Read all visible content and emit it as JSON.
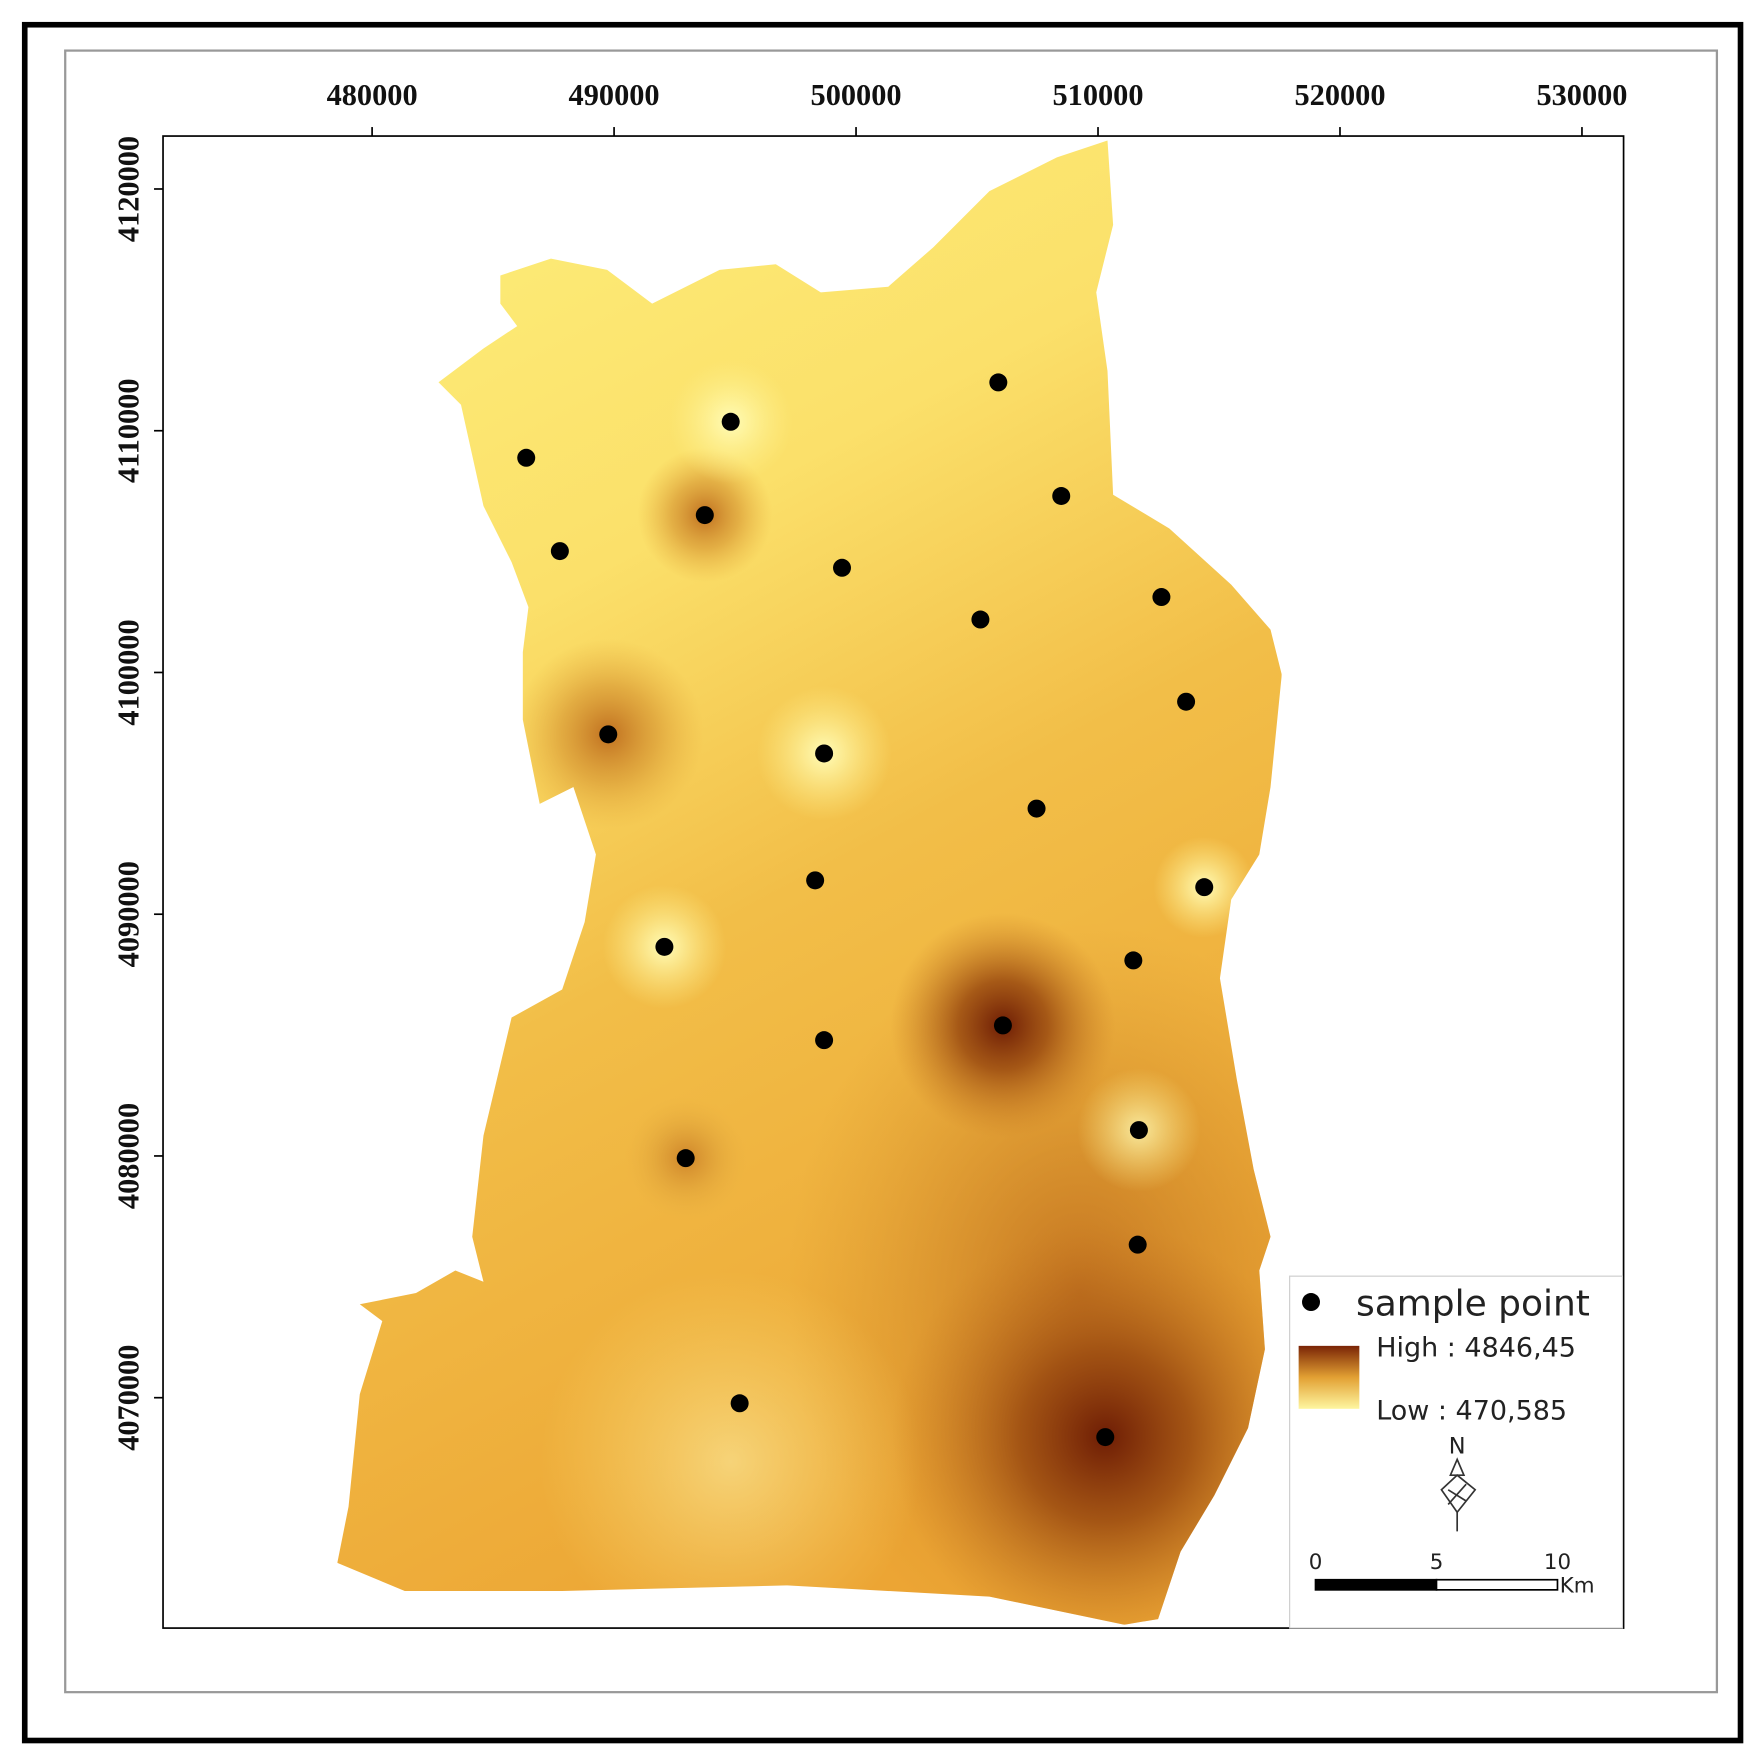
{
  "map": {
    "type": "scatter",
    "xlim": [
      471360,
      531720
    ],
    "ylim": [
      4060470,
      4122190
    ],
    "xticks": [
      480000,
      490000,
      500000,
      510000,
      520000,
      530000
    ],
    "yticks": [
      4070000,
      4080000,
      4090000,
      4100000,
      4110000,
      4120000
    ],
    "points": {
      "color": "#000000",
      "x": [
        505880,
        494820,
        486370,
        508480,
        493750,
        487760,
        499420,
        512620,
        505140,
        513640,
        489760,
        498680,
        507460,
        498310,
        514390,
        492080,
        511460,
        506070,
        498680,
        511690,
        492960,
        511640,
        495190,
        510300
      ],
      "y": [
        4112000,
        4110370,
        4108880,
        4107300,
        4106510,
        4105020,
        4104330,
        4103120,
        4102190,
        4098790,
        4097440,
        4096650,
        4094370,
        4091400,
        4091120,
        4088650,
        4088090,
        4085400,
        4084790,
        4081070,
        4079910,
        4076330,
        4069770,
        4068370
      ]
    },
    "legend": {
      "sample_label": "sample point",
      "high": "High : 4846,45",
      "low": "Low : 470,585"
    },
    "north": "N",
    "scale_bar": {
      "labels": [
        0,
        5,
        10
      ],
      "unit": "Km"
    }
  }
}
